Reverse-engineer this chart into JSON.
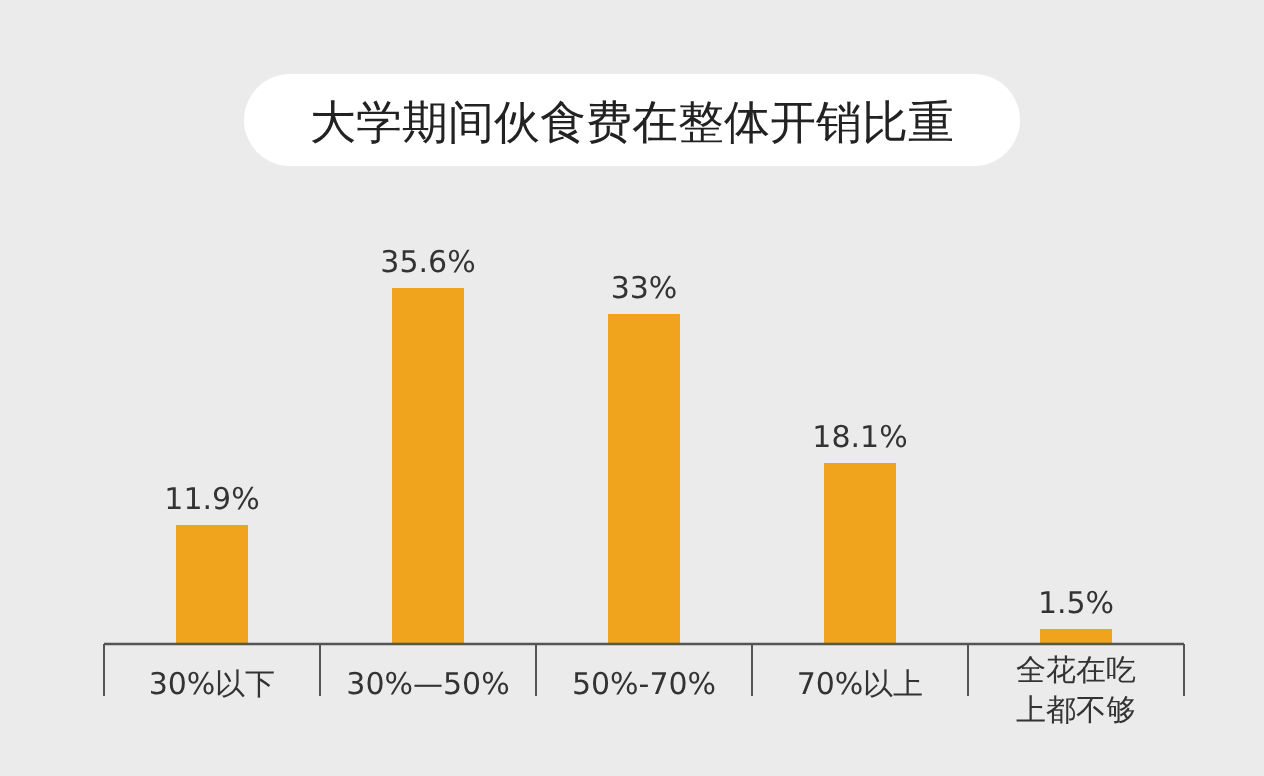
{
  "chart_data": {
    "type": "bar",
    "title": "大学期间伙食费在整体开销比重",
    "categories": [
      "30%以下",
      "30%—50%",
      "50%-70%",
      "70%以上",
      "全花在吃上都不够"
    ],
    "values": [
      11.9,
      35.6,
      33,
      18.1,
      1.5
    ],
    "value_labels": [
      "11.9%",
      "35.6%",
      "33%",
      "18.1%",
      "1.5%"
    ],
    "color": "#f0a31c"
  }
}
